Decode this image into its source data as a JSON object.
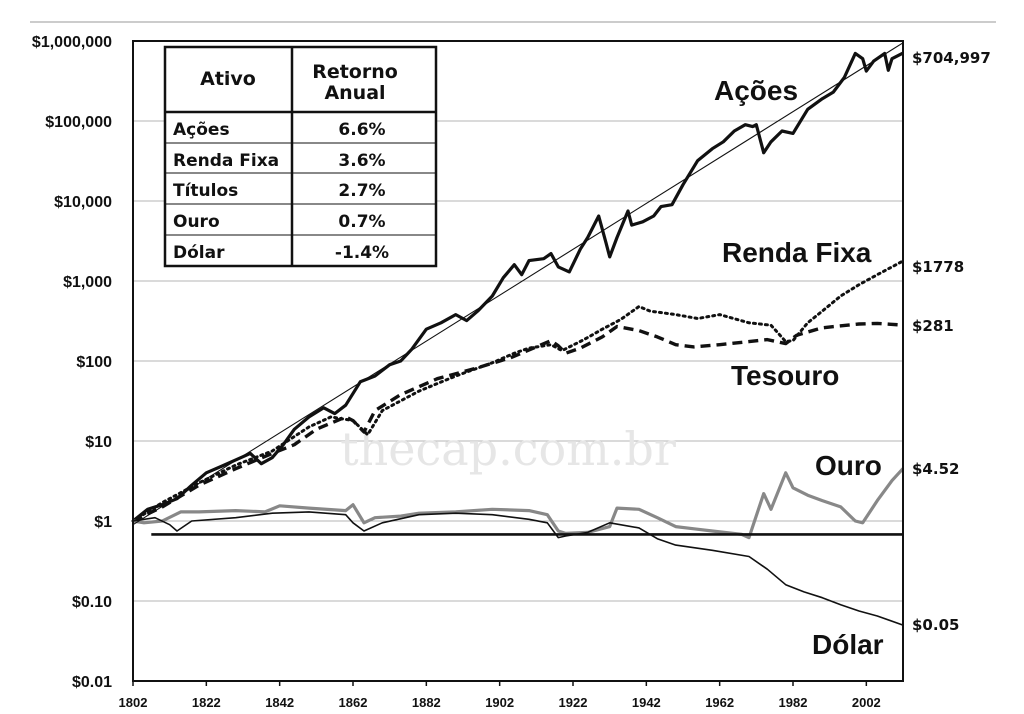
{
  "chart_data": {
    "type": "line",
    "ylog": true,
    "xlim": [
      1802,
      2012
    ],
    "ylim": [
      0.01,
      1000000
    ],
    "grid": true,
    "x_ticks": [
      "1802",
      "1822",
      "1842",
      "1862",
      "1882",
      "1902",
      "1922",
      "1942",
      "1962",
      "1982",
      "2002"
    ],
    "y_ticks": [
      "$1,000,000",
      "$100,000",
      "$10,000",
      "$1,000",
      "$100",
      "$10",
      "$1",
      "$0.10",
      "$0.01"
    ],
    "watermark": "thecap.com.br",
    "series": [
      {
        "name": "Ações",
        "end_label": "$704,997",
        "color": "#111111",
        "style": "solid-thick",
        "points": [
          [
            1802,
            1.0
          ],
          [
            1806,
            1.4
          ],
          [
            1810,
            1.6
          ],
          [
            1814,
            1.9
          ],
          [
            1818,
            2.8
          ],
          [
            1822,
            4.0
          ],
          [
            1826,
            4.8
          ],
          [
            1830,
            5.8
          ],
          [
            1834,
            7.0
          ],
          [
            1837,
            5.2
          ],
          [
            1840,
            6.2
          ],
          [
            1843,
            9.0
          ],
          [
            1846,
            14
          ],
          [
            1850,
            20
          ],
          [
            1854,
            26
          ],
          [
            1857,
            22
          ],
          [
            1860,
            28
          ],
          [
            1864,
            55
          ],
          [
            1868,
            65
          ],
          [
            1872,
            90
          ],
          [
            1875,
            100
          ],
          [
            1878,
            140
          ],
          [
            1882,
            250
          ],
          [
            1886,
            300
          ],
          [
            1890,
            380
          ],
          [
            1893,
            320
          ],
          [
            1896,
            420
          ],
          [
            1900,
            650
          ],
          [
            1903,
            1100
          ],
          [
            1906,
            1600
          ],
          [
            1908,
            1200
          ],
          [
            1910,
            1800
          ],
          [
            1914,
            1900
          ],
          [
            1916,
            2200
          ],
          [
            1918,
            1500
          ],
          [
            1921,
            1300
          ],
          [
            1924,
            2500
          ],
          [
            1926,
            3500
          ],
          [
            1929,
            6500
          ],
          [
            1931,
            3000
          ],
          [
            1932,
            2000
          ],
          [
            1934,
            3500
          ],
          [
            1937,
            7500
          ],
          [
            1938,
            5000
          ],
          [
            1941,
            5500
          ],
          [
            1944,
            6500
          ],
          [
            1946,
            8500
          ],
          [
            1949,
            9000
          ],
          [
            1952,
            16000
          ],
          [
            1956,
            32000
          ],
          [
            1960,
            45000
          ],
          [
            1963,
            55000
          ],
          [
            1966,
            75000
          ],
          [
            1969,
            90000
          ],
          [
            1971,
            85000
          ],
          [
            1972,
            90000
          ],
          [
            1974,
            40000
          ],
          [
            1976,
            55000
          ],
          [
            1979,
            75000
          ],
          [
            1982,
            70000
          ],
          [
            1986,
            140000
          ],
          [
            1990,
            190000
          ],
          [
            1993,
            230000
          ],
          [
            1996,
            350000
          ],
          [
            1999,
            700000
          ],
          [
            2001,
            600000
          ],
          [
            2002,
            420000
          ],
          [
            2004,
            560000
          ],
          [
            2007,
            700000
          ],
          [
            2008,
            430000
          ],
          [
            2009,
            600000
          ],
          [
            2012,
            704997
          ]
        ]
      },
      {
        "name": "Renda Fixa",
        "end_label": "$1778",
        "color": "#111111",
        "style": "dotted",
        "points": [
          [
            1802,
            1.0
          ],
          [
            1810,
            1.7
          ],
          [
            1820,
            3.0
          ],
          [
            1830,
            5.0
          ],
          [
            1840,
            7.5
          ],
          [
            1850,
            15
          ],
          [
            1856,
            20
          ],
          [
            1862,
            18
          ],
          [
            1866,
            12
          ],
          [
            1870,
            24
          ],
          [
            1880,
            42
          ],
          [
            1890,
            65
          ],
          [
            1900,
            95
          ],
          [
            1906,
            125
          ],
          [
            1910,
            145
          ],
          [
            1916,
            160
          ],
          [
            1919,
            135
          ],
          [
            1925,
            185
          ],
          [
            1930,
            250
          ],
          [
            1935,
            330
          ],
          [
            1940,
            480
          ],
          [
            1943,
            420
          ],
          [
            1950,
            380
          ],
          [
            1956,
            340
          ],
          [
            1962,
            380
          ],
          [
            1970,
            300
          ],
          [
            1976,
            280
          ],
          [
            1980,
            175
          ],
          [
            1982,
            180
          ],
          [
            1986,
            300
          ],
          [
            1990,
            420
          ],
          [
            1995,
            650
          ],
          [
            2000,
            900
          ],
          [
            2005,
            1200
          ],
          [
            2012,
            1778
          ]
        ]
      },
      {
        "name": "Tesouro",
        "end_label": "$281",
        "color": "#111111",
        "style": "dashed",
        "points": [
          [
            1802,
            1.0
          ],
          [
            1810,
            1.5
          ],
          [
            1820,
            2.8
          ],
          [
            1830,
            4.5
          ],
          [
            1840,
            7.0
          ],
          [
            1846,
            9.0
          ],
          [
            1852,
            14
          ],
          [
            1860,
            20
          ],
          [
            1862,
            18
          ],
          [
            1865,
            13
          ],
          [
            1868,
            24
          ],
          [
            1875,
            38
          ],
          [
            1885,
            60
          ],
          [
            1895,
            80
          ],
          [
            1905,
            110
          ],
          [
            1912,
            150
          ],
          [
            1916,
            180
          ],
          [
            1918,
            155
          ],
          [
            1920,
            125
          ],
          [
            1924,
            145
          ],
          [
            1930,
            200
          ],
          [
            1934,
            270
          ],
          [
            1940,
            240
          ],
          [
            1945,
            200
          ],
          [
            1950,
            160
          ],
          [
            1955,
            150
          ],
          [
            1962,
            160
          ],
          [
            1970,
            175
          ],
          [
            1975,
            185
          ],
          [
            1980,
            165
          ],
          [
            1983,
            210
          ],
          [
            1990,
            260
          ],
          [
            2000,
            290
          ],
          [
            2005,
            295
          ],
          [
            2012,
            281
          ]
        ]
      },
      {
        "name": "Ouro",
        "end_label": "$4.52",
        "color": "#888888",
        "style": "solid-gray",
        "points": [
          [
            1802,
            1.0
          ],
          [
            1805,
            0.95
          ],
          [
            1810,
            1.0
          ],
          [
            1815,
            1.3
          ],
          [
            1820,
            1.3
          ],
          [
            1830,
            1.35
          ],
          [
            1838,
            1.3
          ],
          [
            1842,
            1.55
          ],
          [
            1850,
            1.45
          ],
          [
            1860,
            1.35
          ],
          [
            1862,
            1.6
          ],
          [
            1865,
            0.95
          ],
          [
            1868,
            1.1
          ],
          [
            1875,
            1.15
          ],
          [
            1880,
            1.25
          ],
          [
            1890,
            1.3
          ],
          [
            1900,
            1.4
          ],
          [
            1910,
            1.35
          ],
          [
            1915,
            1.2
          ],
          [
            1918,
            0.75
          ],
          [
            1920,
            0.7
          ],
          [
            1926,
            0.72
          ],
          [
            1932,
            0.85
          ],
          [
            1934,
            1.45
          ],
          [
            1940,
            1.4
          ],
          [
            1945,
            1.1
          ],
          [
            1950,
            0.85
          ],
          [
            1955,
            0.8
          ],
          [
            1960,
            0.75
          ],
          [
            1968,
            0.68
          ],
          [
            1970,
            0.62
          ],
          [
            1974,
            2.2
          ],
          [
            1976,
            1.4
          ],
          [
            1980,
            4.0
          ],
          [
            1982,
            2.6
          ],
          [
            1986,
            2.1
          ],
          [
            1990,
            1.8
          ],
          [
            1995,
            1.5
          ],
          [
            1999,
            1.0
          ],
          [
            2001,
            0.95
          ],
          [
            2005,
            1.8
          ],
          [
            2009,
            3.2
          ],
          [
            2012,
            4.52
          ]
        ]
      },
      {
        "name": "Dólar",
        "end_label": "$0.05",
        "color": "#111111",
        "style": "solid-thin",
        "points": [
          [
            1802,
            1.0
          ],
          [
            1808,
            1.1
          ],
          [
            1812,
            0.9
          ],
          [
            1814,
            0.75
          ],
          [
            1818,
            1.0
          ],
          [
            1830,
            1.1
          ],
          [
            1840,
            1.25
          ],
          [
            1850,
            1.3
          ],
          [
            1860,
            1.2
          ],
          [
            1862,
            0.95
          ],
          [
            1865,
            0.75
          ],
          [
            1870,
            0.95
          ],
          [
            1880,
            1.2
          ],
          [
            1890,
            1.25
          ],
          [
            1900,
            1.2
          ],
          [
            1910,
            1.05
          ],
          [
            1915,
            0.95
          ],
          [
            1918,
            0.62
          ],
          [
            1920,
            0.65
          ],
          [
            1926,
            0.72
          ],
          [
            1932,
            0.95
          ],
          [
            1940,
            0.82
          ],
          [
            1945,
            0.6
          ],
          [
            1950,
            0.5
          ],
          [
            1960,
            0.43
          ],
          [
            1970,
            0.36
          ],
          [
            1975,
            0.25
          ],
          [
            1980,
            0.16
          ],
          [
            1985,
            0.13
          ],
          [
            1990,
            0.11
          ],
          [
            1995,
            0.09
          ],
          [
            2000,
            0.075
          ],
          [
            2005,
            0.065
          ],
          [
            2012,
            0.05
          ]
        ]
      },
      {
        "name": "",
        "color": "#111111",
        "style": "flat",
        "points": [
          [
            1807,
            0.68
          ],
          [
            2012,
            0.68
          ]
        ]
      },
      {
        "name": "",
        "color": "#111111",
        "style": "trend",
        "points": [
          [
            1802,
            0.9
          ],
          [
            2012,
            950000
          ]
        ]
      }
    ],
    "series_labels": [
      "Ações",
      "Renda Fixa",
      "Tesouro",
      "Ouro",
      "Dólar"
    ],
    "table": {
      "headers": [
        "Ativo",
        "Retorno Anual"
      ],
      "rows": [
        [
          "Ações",
          "6.6%"
        ],
        [
          "Renda Fixa",
          "3.6%"
        ],
        [
          "Títulos",
          "2.7%"
        ],
        [
          "Ouro",
          "0.7%"
        ],
        [
          "Dólar",
          "-1.4%"
        ]
      ]
    }
  }
}
